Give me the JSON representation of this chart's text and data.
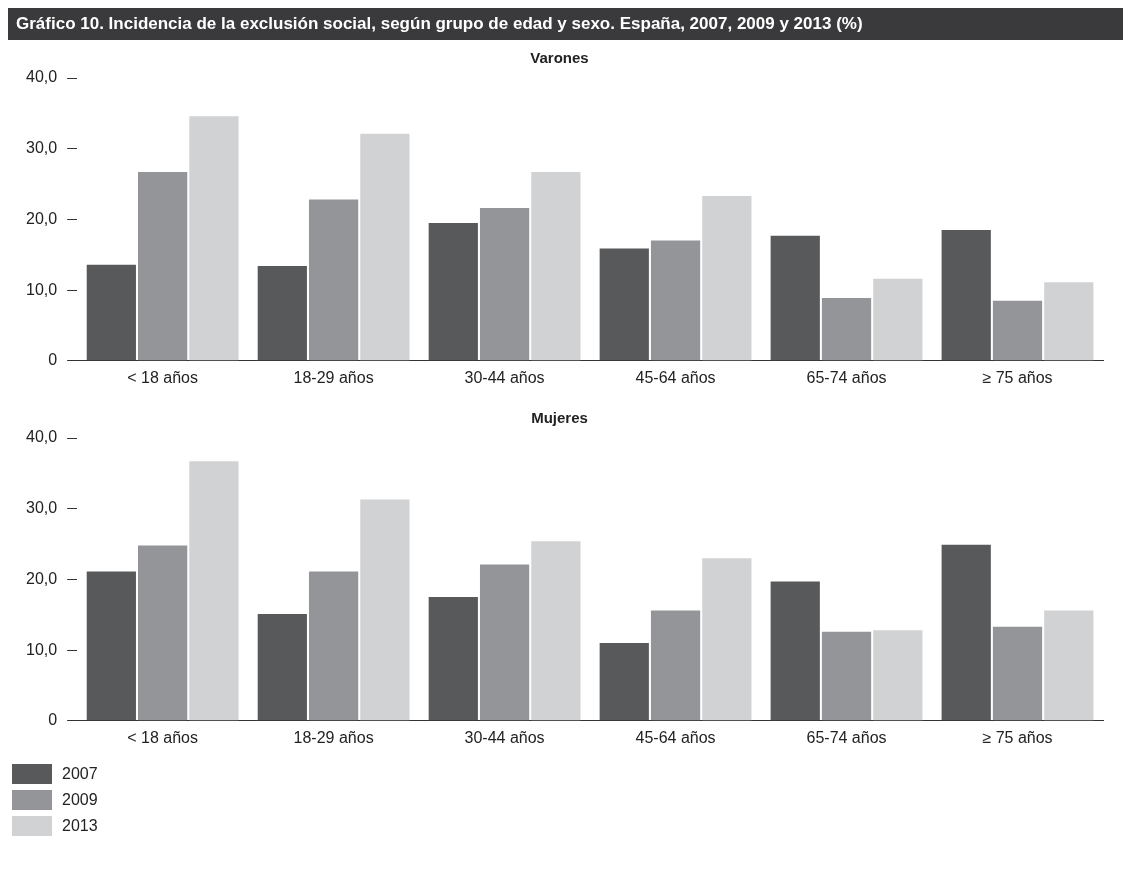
{
  "chart_data": [
    {
      "type": "bar",
      "title": "Gráfico 10.  Incidencia de la exclusión social, según grupo de edad y sexo. España, 2007, 2009 y 2013 (%)",
      "subtitle": "Varones",
      "categories": [
        "< 18 años",
        "18-29 años",
        "30-44 años",
        "45-64 años",
        "65-74 años",
        "≥ 75 años"
      ],
      "series": [
        {
          "color": "#58595b",
          "values": [
            13.6,
            13.4,
            19.5,
            15.9,
            17.7,
            18.5
          ]
        },
        {
          "color": "#939598",
          "values": [
            26.7,
            22.8,
            21.6,
            17.0,
            8.9,
            8.5
          ]
        },
        {
          "color": "#d1d2d4",
          "values": [
            34.6,
            32.1,
            26.7,
            23.3,
            11.6,
            11.1
          ]
        }
      ],
      "ylim": [
        0,
        40
      ],
      "yticks": [
        0,
        {
          "value": 10,
          "label": "10,0"
        },
        {
          "value": 20,
          "label": "20,0"
        },
        {
          "value": 30,
          "label": "30,0"
        },
        {
          "value": 40,
          "label": "40,0"
        }
      ],
      "grid": false,
      "legend": false
    },
    {
      "type": "bar",
      "title": "Mujeres",
      "categories": [
        "< 18 años",
        "18-29 años",
        "30-44 años",
        "45-64 años",
        "65-74 años",
        "≥ 75 años"
      ],
      "series": [
        {
          "name": "2007",
          "color": "#58595b",
          "values": [
            21.1,
            15.1,
            17.5,
            11.0,
            19.7,
            24.9
          ]
        },
        {
          "name": "2009",
          "color": "#939598",
          "values": [
            24.8,
            21.1,
            22.1,
            15.6,
            12.6,
            13.3
          ]
        },
        {
          "name": "2013",
          "color": "#d1d2d4",
          "values": [
            36.7,
            31.3,
            25.4,
            23.0,
            12.8,
            15.6
          ]
        }
      ],
      "ylim": [
        0,
        40
      ],
      "yticks": [
        0,
        {
          "value": 10,
          "label": "10,0"
        },
        {
          "value": 20,
          "label": "20,0"
        },
        {
          "value": 30,
          "label": "30,0"
        },
        {
          "value": 40,
          "label": "40,0"
        }
      ],
      "grid": false,
      "legend": "bottom left"
    }
  ]
}
